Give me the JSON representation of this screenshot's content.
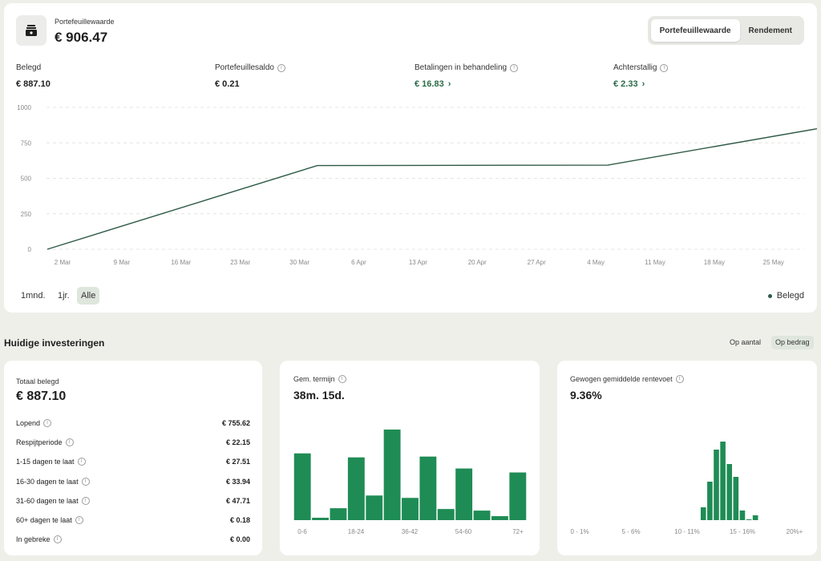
{
  "header": {
    "title": "Portefeuillewaarde",
    "value": "€ 906.47",
    "toggle": [
      "Portefeuillewaarde",
      "Rendement"
    ]
  },
  "metrics": [
    {
      "label": "Belegd",
      "value": "€ 887.10",
      "info": false,
      "link": false
    },
    {
      "label": "Portefeuillesaldo",
      "value": "€ 0.21",
      "info": true,
      "link": false
    },
    {
      "label": "Betalingen in behandeling",
      "value": "€ 16.83",
      "info": true,
      "link": true
    },
    {
      "label": "Achterstallig",
      "value": "€ 2.33",
      "info": true,
      "link": true
    }
  ],
  "ranges": {
    "r1": "1mnd.",
    "r2": "1jr.",
    "r3": "Alle"
  },
  "legend": "Belegd",
  "colors": {
    "line": "#2f5a45",
    "bar": "#1f8c55",
    "accent_green": "#2a6b46"
  },
  "chart_data": [
    {
      "type": "line",
      "x": [
        "2 Mar",
        "9 Mar",
        "16 Mar",
        "23 Mar",
        "30 Mar",
        "6 Apr",
        "13 Apr",
        "20 Apr",
        "27 Apr",
        "4 May",
        "11 May",
        "18 May",
        "25 May"
      ],
      "series": [
        {
          "name": "Belegd",
          "points": [
            [
              0,
              0
            ],
            [
              4.3,
              590
            ],
            [
              9.2,
              593
            ],
            [
              13.5,
              905
            ]
          ]
        }
      ],
      "yticks": [
        0,
        250,
        500,
        750,
        1000
      ],
      "ylim": [
        0,
        1000
      ]
    },
    {
      "type": "bar",
      "categories": [
        "0-6",
        "",
        "",
        "18-24",
        "",
        "",
        "36-42",
        "",
        "",
        "54-60",
        "",
        "",
        "72+"
      ],
      "tick_labels": [
        "0-6",
        "18-24",
        "36-42",
        "54-60",
        "72+"
      ],
      "values": [
        84,
        3,
        15,
        79,
        31,
        114,
        28,
        80,
        14,
        65,
        12,
        5,
        60
      ]
    },
    {
      "type": "bar",
      "tick_labels": [
        "0 - 1%",
        "5 - 6%",
        "10 - 11%",
        "15 - 16%",
        "20%+"
      ],
      "values": [
        0,
        0,
        0,
        0,
        0,
        0,
        0,
        0,
        0,
        0,
        0,
        0,
        0,
        0,
        0,
        0,
        0,
        0,
        0,
        0,
        16,
        48,
        88,
        98,
        70,
        54,
        12,
        1,
        6,
        0,
        0,
        0,
        0,
        0,
        0,
        0
      ]
    }
  ],
  "investments": {
    "title": "Huidige investeringen",
    "toggle": [
      "Op aantal",
      "Op bedrag"
    ],
    "total": {
      "label": "Totaal belegd",
      "value": "€ 887.10"
    },
    "rows": [
      {
        "label": "Lopend",
        "value": "€ 755.62"
      },
      {
        "label": "Respijtperiode",
        "value": "€ 22.15"
      },
      {
        "label": "1-15 dagen te laat",
        "value": "€ 27.51"
      },
      {
        "label": "16-30 dagen te laat",
        "value": "€ 33.94"
      },
      {
        "label": "31-60 dagen te laat",
        "value": "€ 47.71"
      },
      {
        "label": "60+ dagen te laat",
        "value": "€ 0.18"
      },
      {
        "label": "In gebreke",
        "value": "€ 0.00"
      }
    ],
    "term": {
      "label": "Gem. termijn",
      "value": "38m. 15d."
    },
    "rate": {
      "label": "Gewogen gemiddelde rentevoet",
      "value": "9.36%"
    }
  }
}
